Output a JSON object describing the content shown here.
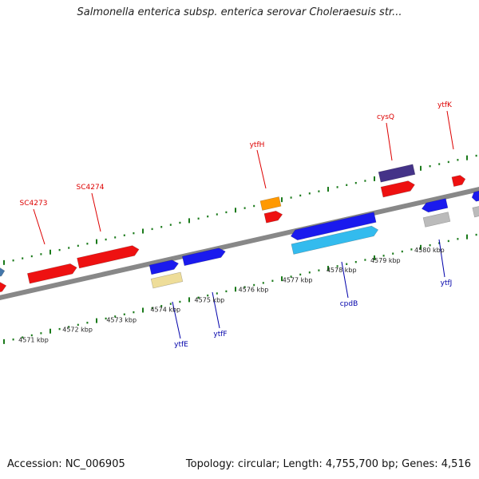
{
  "title": "Salmonella enterica subsp. enterica serovar Choleraesuis str...",
  "footer": {
    "accession": "Accession: NC_006905",
    "topology": "Topology: circular; Length: 4,755,700 bp; Genes: 4,516"
  },
  "colors": {
    "backbone": "#888888",
    "tick": "#1a7a1a",
    "top_label": "#dd0000",
    "bottom_label": "#0000aa",
    "red_gene": "#ee1111",
    "blue_gene": "#1a1aee",
    "light_blue_gene": "#33bbee",
    "pale_gene": "#eedd99",
    "grey_gene": "#bbbbbb",
    "orange_gene": "#ff9900",
    "navy_gene": "#443388",
    "steel_gene": "#4477aa"
  },
  "scale_labels": [
    "4571 kbp",
    "4572 kbp",
    "4573 kbp",
    "4574 kbp",
    "4575 kbp",
    "4576 kbp",
    "4577 kbp",
    "4578 kbp",
    "4579 kbp",
    "4580 kbp"
  ],
  "top_genes": [
    {
      "name": "SC4273",
      "color": "top_label"
    },
    {
      "name": "SC4274",
      "color": "top_label"
    },
    {
      "name": "ytfH",
      "color": "top_label"
    },
    {
      "name": "cysQ",
      "color": "top_label"
    },
    {
      "name": "ytfK",
      "color": "top_label"
    }
  ],
  "bottom_genes": [
    {
      "name": "ytfE",
      "color": "bottom_label"
    },
    {
      "name": "ytfF",
      "color": "bottom_label"
    },
    {
      "name": "cpdB",
      "color": "bottom_label"
    },
    {
      "name": "ytfJ",
      "color": "bottom_label"
    }
  ]
}
